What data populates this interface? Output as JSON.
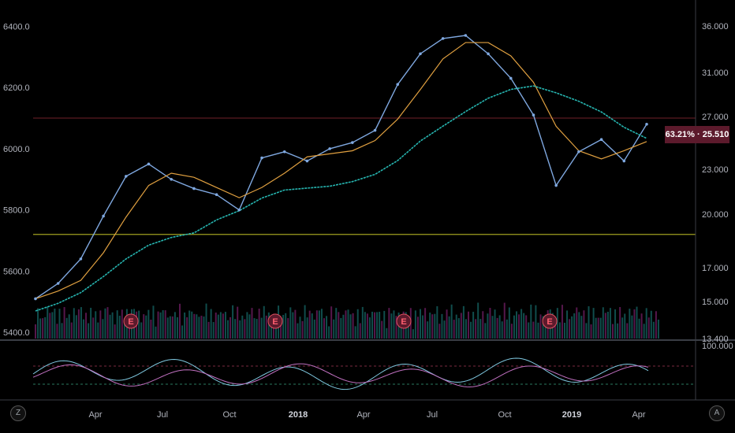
{
  "chart_data": {
    "type": "line",
    "title": "",
    "x_ticks": [
      "Apr",
      "Jul",
      "Oct",
      "2018",
      "Apr",
      "Jul",
      "Oct",
      "2019",
      "Apr"
    ],
    "x_tick_bold": [
      false,
      false,
      false,
      true,
      false,
      false,
      false,
      true,
      false
    ],
    "left_axis_ticks": [
      "6400.0",
      "6200.0",
      "6000.0",
      "5800.0",
      "5600.0",
      "5400.0"
    ],
    "left_axis_values": [
      6400,
      6200,
      6000,
      5800,
      5600,
      5400
    ],
    "left_ylim": [
      5380,
      6460
    ],
    "right_axis_ticks": [
      "36.000",
      "31.000",
      "27.000",
      "23.000",
      "20.000",
      "17.000",
      "15.000",
      "13.400"
    ],
    "oscillator_ticks": [
      "100.000"
    ],
    "price_label": "63.21% · 25.510",
    "earnings_marker_label": "E",
    "earnings_markers": [
      "2017-04",
      "2017-10",
      "2018-04",
      "2018-11"
    ],
    "price_series": {
      "name": "",
      "x": [
        "2017-01",
        "2017-02",
        "2017-03",
        "2017-04",
        "2017-05",
        "2017-06",
        "2017-07",
        "2017-08",
        "2017-09",
        "2017-10",
        "2017-11",
        "2017-12",
        "2018-01",
        "2018-02",
        "2018-03",
        "2018-04",
        "2018-05",
        "2018-06",
        "2018-07",
        "2018-08",
        "2018-09",
        "2018-10",
        "2018-11",
        "2018-12",
        "2019-01",
        "2019-02",
        "2019-03",
        "2019-04"
      ],
      "y": [
        5510,
        5560,
        5640,
        5780,
        5910,
        5950,
        5900,
        5870,
        5850,
        5800,
        5970,
        5990,
        5960,
        6000,
        6020,
        6060,
        6210,
        6310,
        6360,
        6370,
        6310,
        6230,
        6110,
        5880,
        5990,
        6030,
        5960,
        6080
      ]
    },
    "reference_lines": [
      6100,
      5720
    ],
    "grid": false,
    "legend": "none"
  },
  "ui": {
    "left_button": "Z",
    "right_button": "A"
  },
  "colors": {
    "background": "#000000",
    "price_line": "#7fa8e0",
    "sma_fast": "#e0a040",
    "sma_slow": "#26b5b0",
    "ref_line": "#a0a020",
    "tag_bg": "#5c1a2c",
    "volume_up": "#1e8c8a",
    "volume_down": "#9c2a8a"
  }
}
